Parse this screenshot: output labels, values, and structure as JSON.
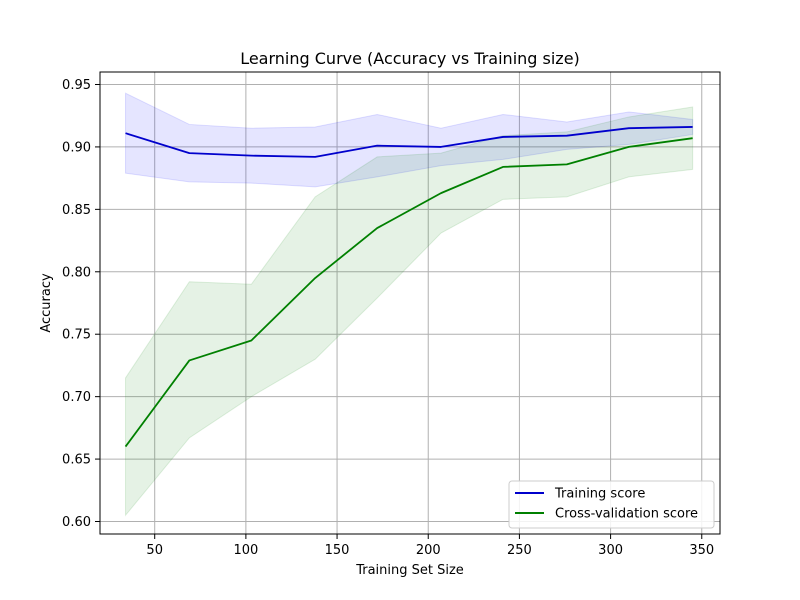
{
  "chart_data": {
    "type": "line",
    "title": "Learning Curve (Accuracy vs Training size)",
    "xlabel": "Training Set Size",
    "ylabel": "Accuracy",
    "xlim": [
      20,
      360
    ],
    "ylim": [
      0.59,
      0.96
    ],
    "xticks": [
      50,
      100,
      150,
      200,
      250,
      300,
      350
    ],
    "yticks": [
      0.6,
      0.65,
      0.7,
      0.75,
      0.8,
      0.85,
      0.9,
      0.95
    ],
    "grid": true,
    "legend_position": "lower-right",
    "x": [
      34,
      69,
      103,
      138,
      172,
      207,
      241,
      276,
      310,
      345
    ],
    "series": [
      {
        "name": "Training score",
        "color": "#0000cc",
        "band_color": "#0000ff",
        "values": [
          0.911,
          0.895,
          0.893,
          0.892,
          0.901,
          0.9,
          0.908,
          0.909,
          0.915,
          0.916
        ],
        "upper": [
          0.943,
          0.918,
          0.915,
          0.916,
          0.926,
          0.915,
          0.926,
          0.92,
          0.928,
          0.922
        ],
        "lower": [
          0.879,
          0.872,
          0.871,
          0.868,
          0.876,
          0.885,
          0.89,
          0.898,
          0.902,
          0.91
        ]
      },
      {
        "name": "Cross-validation score",
        "color": "#008000",
        "band_color": "#008000",
        "values": [
          0.66,
          0.729,
          0.745,
          0.795,
          0.835,
          0.863,
          0.884,
          0.886,
          0.9,
          0.907
        ],
        "upper": [
          0.715,
          0.792,
          0.79,
          0.86,
          0.892,
          0.895,
          0.909,
          0.912,
          0.924,
          0.932
        ],
        "lower": [
          0.605,
          0.667,
          0.7,
          0.73,
          0.779,
          0.831,
          0.858,
          0.86,
          0.876,
          0.882
        ]
      }
    ]
  }
}
